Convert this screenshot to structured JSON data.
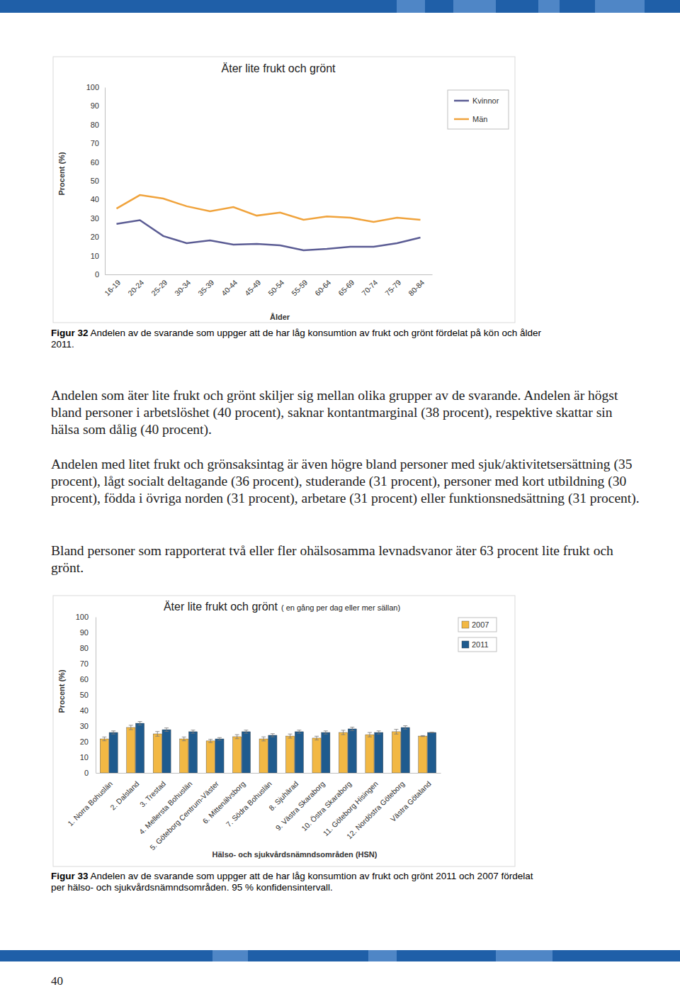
{
  "chart_data": [
    {
      "type": "line",
      "title": "Äter lite frukt och grönt",
      "x_label": "Ålder",
      "y_label": "Procent (%)",
      "categories": [
        "16-19",
        "20-24",
        "25-29",
        "30-34",
        "35-39",
        "40-44",
        "45-49",
        "50-54",
        "55-59",
        "60-64",
        "65-69",
        "70-74",
        "75-79",
        "80-84"
      ],
      "series": [
        {
          "name": "Kvinnor",
          "color": "#5b5c94",
          "values": [
            27,
            29,
            20.5,
            16.7,
            18.2,
            15.9,
            16.3,
            15.5,
            12.9,
            13.6,
            14.8,
            14.8,
            16.7,
            19.7
          ]
        },
        {
          "name": "Män",
          "color": "#f0a33c",
          "values": [
            35.2,
            42.4,
            40.5,
            36.4,
            33.7,
            36,
            31.4,
            33,
            29.2,
            31,
            30.3,
            28,
            30.3,
            29.2
          ]
        }
      ],
      "ylim": [
        0,
        100
      ],
      "yticks": [
        0,
        10,
        20,
        30,
        40,
        50,
        60,
        70,
        80,
        90,
        100
      ],
      "grid": false,
      "legend": "right"
    },
    {
      "type": "bar",
      "title": "Äter lite frukt och grönt",
      "subtitle": "( en gång per dag eller mer sällan)",
      "x_label": "Hälso- och sjukvårdsnämndsområden (HSN)",
      "y_label": "Procent (%)",
      "categories": [
        "1. Norra Bohuslän",
        "2. Dalsland",
        "3. Trestad",
        "4. Mellersta Bohuslän",
        "5. Göteborg Centrum-Väster",
        "6. Mittenälvsborg",
        "7. Södra Bohuslän",
        "8. Sjuhärad",
        "9. Västra Skaraborg",
        "10. Östra Skaraborg",
        "11. Göteborg Hisingen",
        "12. Nordöstra Göteborg",
        "Västra Götaland"
      ],
      "series": [
        {
          "name": "2007",
          "color": "#f2b844",
          "values": [
            21.8,
            29.1,
            25,
            21.8,
            20.5,
            23.2,
            21.8,
            23.6,
            22.3,
            25.9,
            24.5,
            26.4,
            23.6
          ],
          "errors": [
            1.2,
            1.4,
            1.5,
            1.2,
            1,
            1.3,
            1.3,
            1.3,
            1.2,
            1.4,
            1.4,
            1.5,
            0.3
          ]
        },
        {
          "name": "2011",
          "color": "#1f5b8e",
          "values": [
            25.9,
            31.8,
            27.7,
            26.4,
            21.8,
            26.4,
            24.1,
            26.4,
            25.9,
            28.2,
            25.9,
            29.1,
            25.9
          ],
          "errors": [
            1,
            1.1,
            1.1,
            1,
            0.8,
            1,
            1,
            1,
            1,
            1.1,
            1,
            1.1,
            0.2
          ]
        }
      ],
      "ylim": [
        0,
        100
      ],
      "yticks": [
        0,
        10,
        20,
        30,
        40,
        50,
        60,
        70,
        80,
        90,
        100
      ],
      "grid": false,
      "legend": "right"
    }
  ],
  "document": {
    "captions": [
      {
        "label": "Figur 32",
        "text": "Andelen av de svarande som uppger att de har låg konsumtion av frukt och grönt fördelat på kön och ålder 2011."
      },
      {
        "label": "Figur 33",
        "text": "Andelen av de svarande som uppger att de har låg konsumtion av frukt och grönt 2011 och 2007 fördelat per hälso- och sjukvårdsnämndsområden. 95 % konfidensintervall."
      }
    ],
    "paragraphs": [
      "Andelen som äter lite frukt och grönt skiljer sig mellan olika grupper av de svarande. Andelen är högst bland personer i arbetslöshet (40 procent), saknar kontantmarginal (38 procent), respektive skattar sin hälsa som dålig (40 procent).",
      "Andelen med litet frukt och grönsaksintag är även högre bland personer med sjuk/aktivitetsersättning (35 procent), lågt socialt deltagande (36 procent), studerande (31 procent), personer med kort utbildning (30 procent), födda i övriga norden (31 procent), arbetare (31 procent) eller funktionsnedsättning (31 procent).",
      "Bland personer som rapporterat två eller fler ohälsosamma levnadsvanor äter 63 procent lite frukt och grönt."
    ],
    "page_number": 40
  }
}
